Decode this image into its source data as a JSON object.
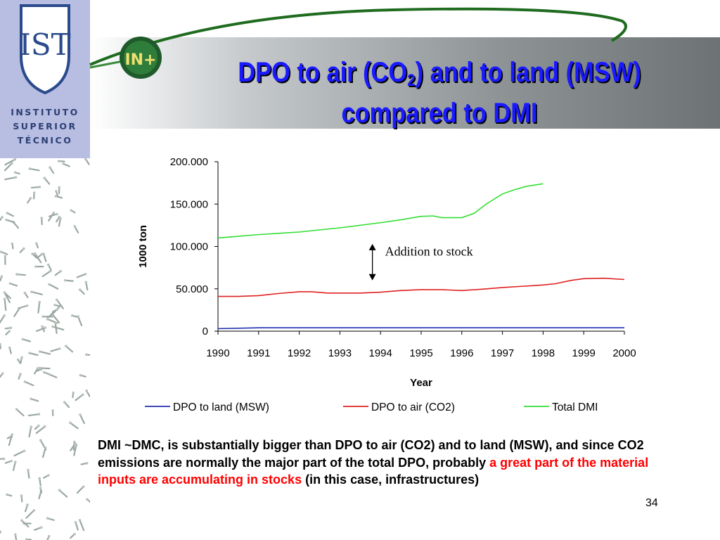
{
  "logo": {
    "letters": "IST",
    "line1": "INSTITUTO",
    "line2": "SUPERIOR",
    "line3": "TÉCNICO",
    "badge": "IN+"
  },
  "slide": {
    "title_part1": "DPO to air (CO",
    "title_sub": "2",
    "title_part2": ") and to land (MSW)",
    "title_line2": "compared to DMI",
    "body_part1": "DMI ~DMC, is substantially bigger than DPO to air (CO2) and to land (MSW), and since CO2 emissions are normally the major part of  the total DPO, probably ",
    "body_highlight": "a great part of the material inputs are accumulating in stocks",
    "body_part2": " (in this case, infrastructures)",
    "page_number": "34"
  },
  "chart_data": {
    "type": "line",
    "xlabel": "Year",
    "ylabel": "1000 ton",
    "xlim": [
      1990,
      2000
    ],
    "ylim": [
      0,
      200000
    ],
    "x_ticks": [
      1990,
      1991,
      1992,
      1993,
      1994,
      1995,
      1996,
      1997,
      1998,
      1999,
      2000
    ],
    "y_ticks": [
      0,
      50000,
      100000,
      150000,
      200000
    ],
    "y_tick_labels": [
      "0",
      "50.000",
      "100.000",
      "150.000",
      "200.000"
    ],
    "grid": false,
    "legend_position": "bottom",
    "annotation": {
      "text": "Addition to stock",
      "x": 1993.8,
      "y_from": 103000,
      "y_to": 60000
    },
    "series": [
      {
        "name": "DPO to land (MSW)",
        "color": "#1f2fb0",
        "x": [
          1990,
          1990.5,
          1991,
          1992,
          1993,
          1994,
          1995,
          1996,
          1997,
          1998,
          1999,
          2000
        ],
        "y": [
          3000,
          3500,
          4000,
          4000,
          4000,
          4000,
          4000,
          4000,
          4000,
          4000,
          4000,
          4000
        ]
      },
      {
        "name": "DPO to air (CO2)",
        "color": "#e02020",
        "x": [
          1990,
          1990.5,
          1991,
          1991.5,
          1992,
          1992.3,
          1992.7,
          1993,
          1993.5,
          1994,
          1994.5,
          1995,
          1995.5,
          1996,
          1996.5,
          1997,
          1997.5,
          1998,
          1998.3,
          1998.7,
          1999,
          1999.5,
          2000
        ],
        "y": [
          41000,
          41000,
          42000,
          44500,
          46500,
          46500,
          45000,
          45000,
          45000,
          46000,
          48000,
          49000,
          49000,
          48000,
          49500,
          51500,
          53000,
          54500,
          56000,
          60000,
          62000,
          62500,
          61000
        ]
      },
      {
        "name": "Total DMI",
        "color": "#33dd33",
        "x": [
          1990,
          1990.5,
          1991,
          1991.5,
          1992,
          1992.5,
          1993,
          1993.5,
          1994,
          1994.5,
          1995,
          1995.3,
          1995.5,
          1996,
          1996.3,
          1996.6,
          1997,
          1997.3,
          1997.6,
          1998
        ],
        "y": [
          110000,
          112000,
          114000,
          115500,
          117000,
          119500,
          122000,
          125000,
          128000,
          131500,
          135500,
          136000,
          134000,
          134000,
          139000,
          150000,
          162000,
          167000,
          171000,
          174000
        ]
      }
    ]
  }
}
